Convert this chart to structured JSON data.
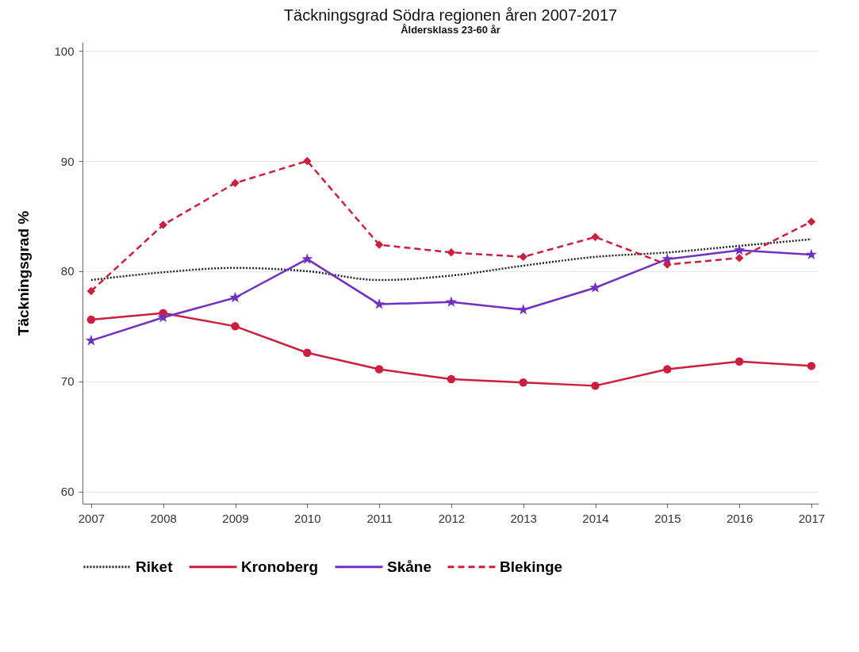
{
  "chart_data": {
    "type": "line",
    "title": "Täckningsgrad Södra regionen åren 2007-2017",
    "subtitle": "Åldersklass 23-60 år",
    "ylabel": "Täckningsgrad %",
    "x": [
      2007,
      2008,
      2009,
      2010,
      2011,
      2012,
      2013,
      2014,
      2015,
      2016,
      2017
    ],
    "xlim": [
      2006.88,
      2017.1
    ],
    "xticks": [
      2007,
      2008,
      2009,
      2010,
      2011,
      2012,
      2013,
      2014,
      2015,
      2016,
      2017
    ],
    "ylim": [
      58.9,
      100.8
    ],
    "yticks": [
      60,
      70,
      80,
      90,
      100
    ],
    "grid": "y",
    "legend": "bottom",
    "series": [
      {
        "name": "Riket",
        "color": "#222222",
        "marker": "none",
        "line_style": "dotted",
        "values": [
          79.2,
          79.9,
          80.3,
          80.0,
          79.2,
          79.6,
          80.5,
          81.3,
          81.7,
          82.3,
          82.9
        ]
      },
      {
        "name": "Kronoberg",
        "color": "#cc1f3f",
        "marker": "circle",
        "line_style": "solid",
        "values": [
          75.6,
          76.2,
          75.0,
          72.6,
          71.1,
          70.2,
          69.9,
          69.6,
          71.1,
          71.8,
          71.4
        ]
      },
      {
        "name": "Skåne",
        "color": "#7030c0",
        "marker": "star",
        "line_style": "solid",
        "values": [
          73.7,
          75.8,
          77.6,
          81.1,
          77.0,
          77.2,
          76.5,
          78.5,
          81.1,
          81.9,
          81.5
        ]
      },
      {
        "name": "Blekinge",
        "color": "#cc1f3f",
        "marker": "diamond",
        "line_style": "dashed",
        "values": [
          78.2,
          84.2,
          88.0,
          90.0,
          82.4,
          81.7,
          81.3,
          83.1,
          80.6,
          81.2,
          84.5
        ]
      }
    ]
  }
}
